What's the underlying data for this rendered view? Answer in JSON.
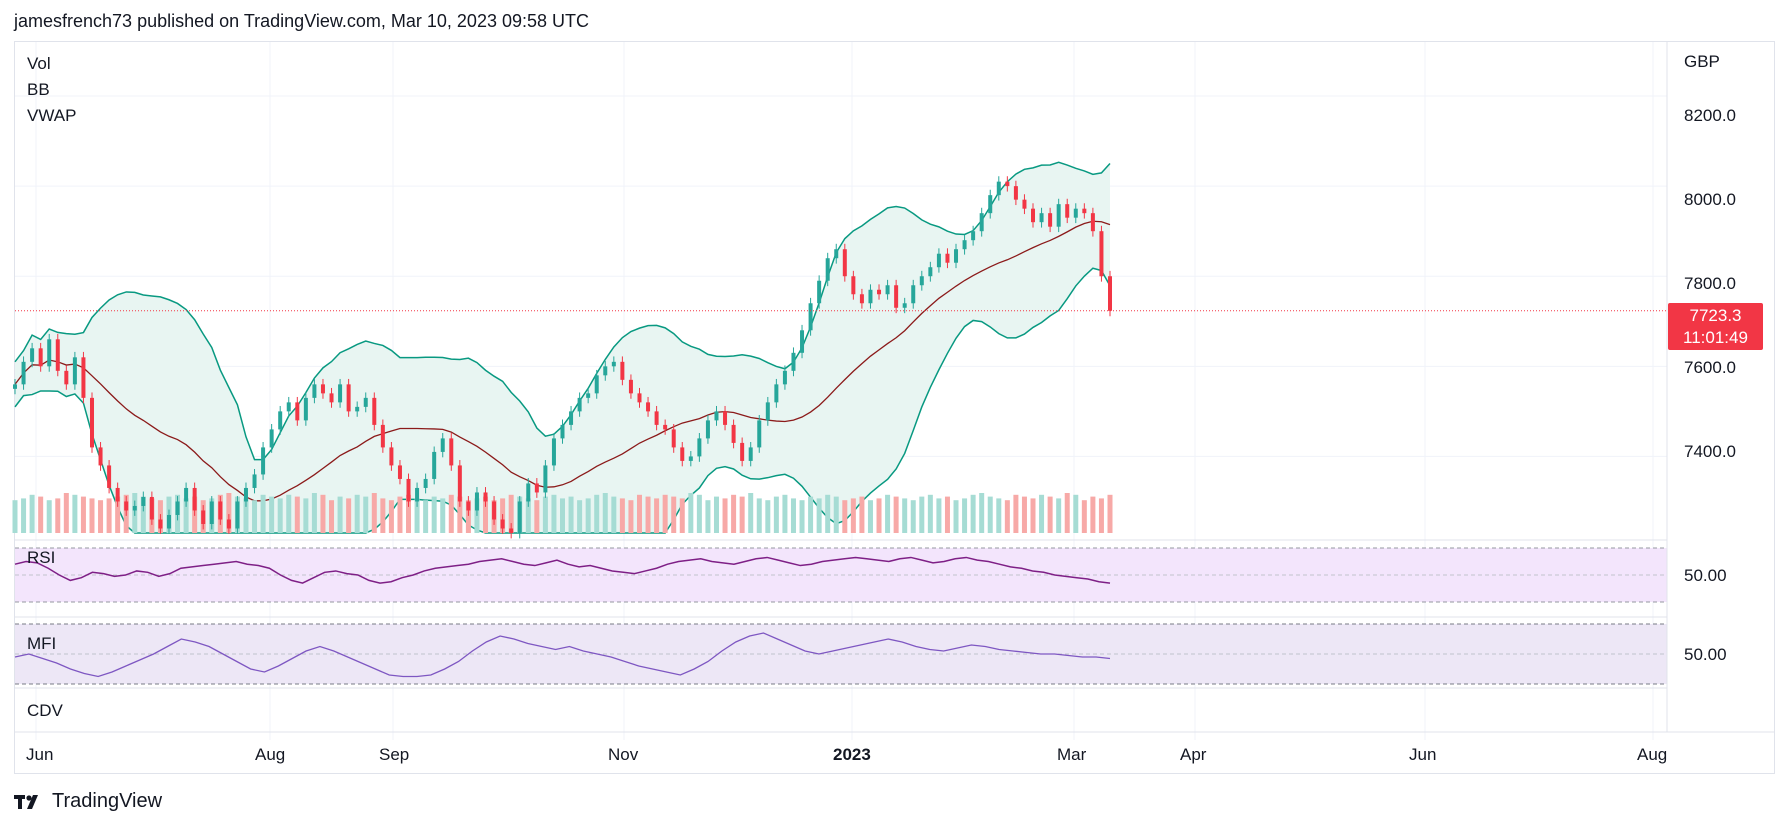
{
  "header": {
    "text": "jamesfrench73 published on TradingView.com, Mar 10, 2023 09:58 UTC"
  },
  "currency": "GBP",
  "panes": {
    "main_labels": [
      "Vol",
      "BB",
      "VWAP"
    ],
    "rsi_label": "RSI",
    "mfi_label": "MFI",
    "cdv_label": "CDV"
  },
  "price_axis": [
    "8200.0",
    "8000.0",
    "7800.0",
    "7600.0",
    "7400.0"
  ],
  "rsi_axis": "50.00",
  "mfi_axis": "50.00",
  "time_axis": [
    "Jun",
    "Aug",
    "Sep",
    "Nov",
    "2023",
    "Mar",
    "Apr",
    "Jun",
    "Aug"
  ],
  "last_price": {
    "price": "7723.3",
    "countdown": "11:01:49"
  },
  "footer": {
    "brand": "TradingView"
  },
  "colors": {
    "up": "#26a69a",
    "down": "#f23645",
    "bb_band": "#089981",
    "bb_fill": "#e8f5f2",
    "vwap": "#8b1a1a",
    "rsi": "#7e1f86",
    "rsi_bg": "#f3e5fc",
    "mfi": "#7e57c2",
    "mfi_bg": "#ede7f6"
  },
  "chart_data": {
    "type": "candlestick",
    "symbol_currency": "GBP",
    "y_range": [
      7230,
      8320
    ],
    "x_ticks": [
      "Jun",
      "Aug",
      "Sep",
      "Nov",
      "2023",
      "Mar",
      "Apr",
      "Jun",
      "Aug"
    ],
    "close_series": [
      7560,
      7610,
      7640,
      7600,
      7660,
      7590,
      7560,
      7620,
      7530,
      7420,
      7380,
      7330,
      7300,
      7280,
      7290,
      7310,
      7260,
      7240,
      7270,
      7300,
      7330,
      7280,
      7250,
      7300,
      7260,
      7240,
      7300,
      7330,
      7360,
      7420,
      7460,
      7500,
      7520,
      7480,
      7530,
      7560,
      7540,
      7520,
      7560,
      7500,
      7510,
      7530,
      7470,
      7420,
      7380,
      7350,
      7300,
      7330,
      7350,
      7410,
      7440,
      7380,
      7300,
      7280,
      7320,
      7300,
      7260,
      7240,
      7230,
      7300,
      7340,
      7320,
      7380,
      7440,
      7470,
      7500,
      7530,
      7540,
      7580,
      7600,
      7610,
      7570,
      7540,
      7520,
      7500,
      7470,
      7460,
      7420,
      7390,
      7400,
      7440,
      7480,
      7500,
      7470,
      7430,
      7390,
      7420,
      7480,
      7520,
      7560,
      7590,
      7630,
      7680,
      7740,
      7790,
      7840,
      7860,
      7800,
      7760,
      7740,
      7770,
      7760,
      7780,
      7730,
      7740,
      7780,
      7800,
      7820,
      7850,
      7830,
      7860,
      7880,
      7900,
      7940,
      7980,
      8010,
      8000,
      7970,
      7950,
      7920,
      7940,
      7910,
      7960,
      7930,
      7950,
      7940,
      7900,
      7800,
      7723.3
    ],
    "volume_relative": [
      0.6,
      0.7,
      0.9,
      0.8,
      0.6,
      0.7,
      1.0,
      0.9,
      0.8,
      0.7,
      0.6,
      0.7,
      0.8,
      0.9,
      1.0,
      0.8,
      0.7,
      0.6,
      0.8,
      0.9,
      0.7,
      0.8,
      0.6,
      0.7,
      0.9,
      1.0,
      0.8,
      0.7,
      0.6,
      0.9,
      0.8,
      0.7,
      0.9,
      0.8,
      0.7,
      1.0,
      0.9,
      0.6,
      0.8,
      0.7,
      0.9,
      0.8,
      1.0,
      0.7,
      0.6,
      0.8,
      0.9,
      0.7,
      0.6,
      0.8,
      0.7,
      0.9,
      0.8,
      0.6,
      0.7,
      0.8,
      0.6,
      0.7,
      0.9,
      0.8,
      0.7,
      0.6,
      0.8,
      0.9,
      0.7,
      0.8,
      0.6,
      0.7,
      0.9,
      1.0,
      0.8,
      0.7,
      0.6,
      0.9,
      0.8,
      0.7,
      0.9,
      0.8,
      0.7,
      1.0,
      0.9,
      0.6,
      0.8,
      0.7,
      0.9,
      0.8,
      1.0,
      0.7,
      0.6,
      0.8,
      0.9,
      0.7,
      0.6,
      0.8,
      0.7,
      0.9,
      0.8,
      0.6,
      0.7,
      0.8,
      0.6,
      0.7,
      0.9,
      0.8,
      0.7,
      0.6,
      0.8,
      0.9,
      0.7,
      0.8,
      0.6,
      0.7,
      0.9,
      1.0,
      0.8,
      0.7,
      0.6,
      0.9,
      0.8,
      0.7,
      0.9,
      0.8,
      0.7,
      1.0,
      0.9,
      0.6,
      0.8,
      0.7,
      0.9
    ],
    "rsi_series": [
      58,
      60,
      59,
      55,
      50,
      46,
      48,
      52,
      51,
      49,
      50,
      53,
      52,
      49,
      51,
      55,
      56,
      57,
      58,
      59,
      60,
      58,
      57,
      55,
      50,
      46,
      44,
      48,
      52,
      53,
      51,
      50,
      46,
      44,
      45,
      48,
      50,
      53,
      55,
      56,
      57,
      58,
      60,
      61,
      62,
      60,
      58,
      57,
      59,
      61,
      58,
      56,
      57,
      55,
      53,
      52,
      51,
      53,
      55,
      58,
      60,
      61,
      62,
      60,
      59,
      58,
      60,
      62,
      63,
      61,
      59,
      57,
      58,
      60,
      61,
      62,
      63,
      62,
      61,
      60,
      62,
      63,
      61,
      59,
      60,
      62,
      63,
      61,
      60,
      58,
      56,
      55,
      53,
      52,
      50,
      49,
      48,
      47,
      45,
      44
    ],
    "mfi_series": [
      48,
      50,
      47,
      44,
      40,
      37,
      35,
      38,
      42,
      46,
      50,
      55,
      60,
      58,
      55,
      50,
      45,
      40,
      38,
      42,
      47,
      52,
      55,
      52,
      48,
      44,
      40,
      36,
      35,
      35,
      36,
      40,
      45,
      52,
      58,
      62,
      60,
      57,
      55,
      53,
      55,
      52,
      50,
      48,
      45,
      42,
      40,
      38,
      36,
      40,
      45,
      52,
      58,
      62,
      64,
      60,
      56,
      52,
      50,
      52,
      54,
      56,
      58,
      60,
      58,
      55,
      53,
      52,
      54,
      56,
      55,
      53,
      52,
      51,
      50,
      50,
      49,
      48,
      48,
      47
    ]
  }
}
